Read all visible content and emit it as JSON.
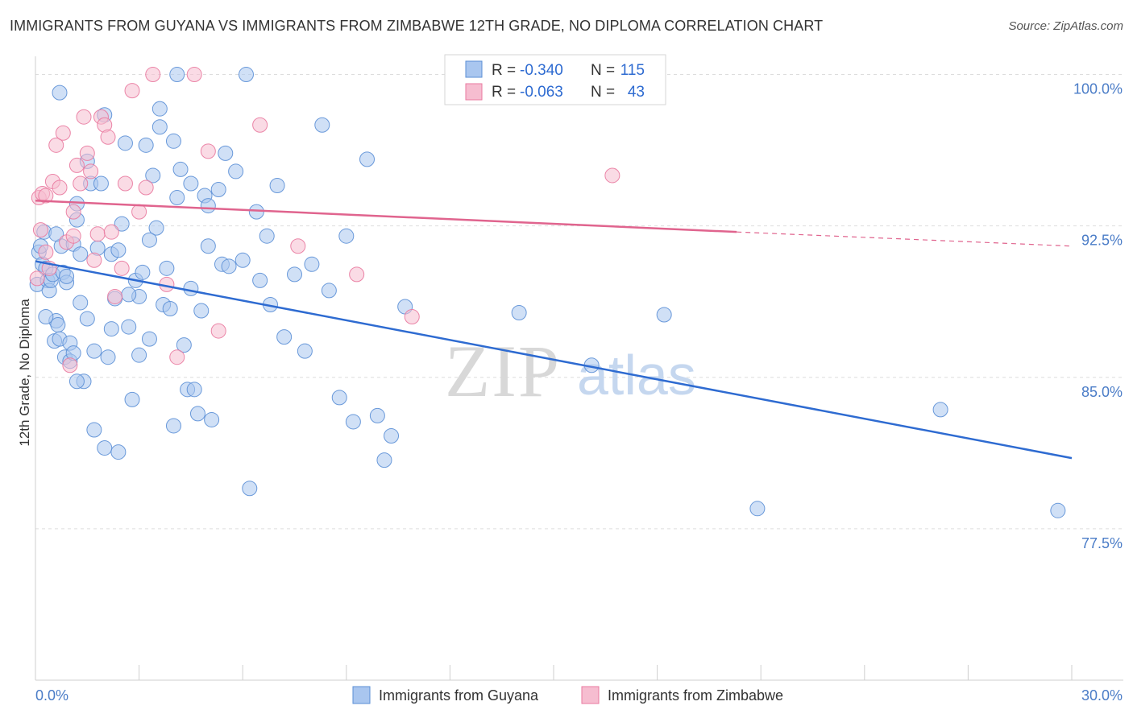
{
  "title": "IMMIGRANTS FROM GUYANA VS IMMIGRANTS FROM ZIMBABWE 12TH GRADE, NO DIPLOMA CORRELATION CHART",
  "source": "Source: ZipAtlas.com",
  "colors": {
    "guyana": "#5b8fd6",
    "guyana_fill": "#a9c6ef",
    "zimbabwe": "#e9799f",
    "zimbabwe_fill": "#f6bdd0",
    "tick_text": "#4a7cc7",
    "grid": "#dddddd"
  },
  "legend": {
    "rows": [
      {
        "r_label": "R =",
        "r_value": "-0.340",
        "n_label": "N =",
        "n_value": "115"
      },
      {
        "r_label": "R =",
        "r_value": "-0.063",
        "n_label": "N =",
        "n_value": "43"
      }
    ]
  },
  "watermark": {
    "zip": "ZIP",
    "atlas": "atlas"
  },
  "chart_data": {
    "type": "scatter",
    "title": "IMMIGRANTS FROM GUYANA VS IMMIGRANTS FROM ZIMBABWE 12TH GRADE, NO DIPLOMA CORRELATION CHART",
    "xlabel": "",
    "ylabel": "12th Grade, No Diploma",
    "xlim": [
      0,
      30
    ],
    "ylim": [
      70,
      100.5
    ],
    "x_tick_labels": [
      "0.0%",
      "30.0%"
    ],
    "y_ticks": [
      77.5,
      85.0,
      92.5,
      100.0
    ],
    "y_tick_labels": [
      "77.5%",
      "85.0%",
      "92.5%",
      "100.0%"
    ],
    "grid": true,
    "legend_placement": "top-center",
    "series": [
      {
        "name": "Immigrants from Guyana",
        "color": "#5b8fd6",
        "trend": {
          "x": [
            0,
            30
          ],
          "y": [
            90.75,
            81.0
          ]
        },
        "points": [
          [
            0.05,
            89.6
          ],
          [
            0.1,
            91.2
          ],
          [
            0.15,
            91.5
          ],
          [
            0.2,
            90.6
          ],
          [
            0.25,
            92.2
          ],
          [
            0.3,
            90.4
          ],
          [
            0.35,
            89.8
          ],
          [
            0.4,
            89.3
          ],
          [
            0.45,
            89.8
          ],
          [
            0.5,
            90.1
          ],
          [
            0.55,
            86.8
          ],
          [
            0.6,
            87.8
          ],
          [
            0.65,
            87.6
          ],
          [
            0.7,
            86.9
          ],
          [
            0.75,
            91.5
          ],
          [
            0.8,
            90.2
          ],
          [
            0.85,
            86.0
          ],
          [
            0.9,
            89.7
          ],
          [
            1.0,
            86.7
          ],
          [
            1.0,
            85.8
          ],
          [
            1.1,
            86.2
          ],
          [
            1.1,
            91.6
          ],
          [
            1.2,
            92.8
          ],
          [
            1.2,
            93.6
          ],
          [
            1.3,
            91.1
          ],
          [
            1.4,
            84.8
          ],
          [
            1.5,
            95.7
          ],
          [
            1.6,
            94.6
          ],
          [
            1.7,
            86.3
          ],
          [
            1.8,
            91.4
          ],
          [
            1.9,
            94.6
          ],
          [
            2.0,
            98.0
          ],
          [
            2.1,
            86.0
          ],
          [
            2.2,
            91.1
          ],
          [
            2.3,
            88.9
          ],
          [
            2.4,
            91.3
          ],
          [
            2.5,
            92.6
          ],
          [
            2.6,
            96.6
          ],
          [
            2.7,
            87.5
          ],
          [
            2.8,
            83.9
          ],
          [
            2.9,
            89.8
          ],
          [
            3.0,
            89.0
          ],
          [
            3.1,
            90.2
          ],
          [
            3.2,
            96.5
          ],
          [
            3.3,
            86.9
          ],
          [
            3.4,
            95.0
          ],
          [
            3.5,
            92.4
          ],
          [
            3.6,
            97.4
          ],
          [
            3.7,
            88.6
          ],
          [
            3.8,
            90.4
          ],
          [
            4.0,
            82.6
          ],
          [
            4.1,
            93.9
          ],
          [
            4.2,
            95.3
          ],
          [
            4.3,
            86.6
          ],
          [
            4.4,
            84.4
          ],
          [
            4.5,
            89.4
          ],
          [
            4.6,
            84.4
          ],
          [
            4.7,
            83.2
          ],
          [
            4.8,
            88.3
          ],
          [
            4.9,
            94.0
          ],
          [
            5.0,
            93.5
          ],
          [
            5.1,
            82.9
          ],
          [
            5.3,
            94.3
          ],
          [
            5.4,
            90.6
          ],
          [
            5.6,
            90.5
          ],
          [
            5.8,
            95.2
          ],
          [
            6.0,
            90.8
          ],
          [
            6.2,
            79.5
          ],
          [
            6.4,
            93.2
          ],
          [
            6.5,
            89.8
          ],
          [
            6.8,
            88.6
          ],
          [
            7.0,
            94.5
          ],
          [
            7.2,
            87.0
          ],
          [
            7.5,
            90.1
          ],
          [
            7.8,
            86.3
          ],
          [
            8.0,
            90.6
          ],
          [
            8.3,
            97.5
          ],
          [
            8.5,
            89.3
          ],
          [
            8.8,
            84.0
          ],
          [
            9.0,
            92.0
          ],
          [
            9.2,
            82.8
          ],
          [
            9.6,
            95.8
          ],
          [
            9.9,
            83.1
          ],
          [
            10.1,
            80.9
          ],
          [
            10.3,
            82.1
          ],
          [
            10.7,
            88.5
          ],
          [
            1.2,
            84.8
          ],
          [
            1.7,
            82.4
          ],
          [
            2.0,
            81.5
          ],
          [
            2.4,
            81.3
          ],
          [
            3.6,
            98.3
          ],
          [
            4.5,
            94.6
          ],
          [
            5.5,
            96.1
          ],
          [
            0.7,
            99.1
          ],
          [
            6.1,
            100.0
          ],
          [
            4.1,
            100.0
          ],
          [
            3.0,
            86.1
          ],
          [
            3.9,
            88.4
          ],
          [
            2.2,
            87.4
          ],
          [
            1.5,
            87.9
          ],
          [
            0.9,
            90.0
          ],
          [
            1.3,
            88.7
          ],
          [
            0.6,
            92.1
          ],
          [
            0.3,
            88.0
          ],
          [
            14.0,
            88.2
          ],
          [
            16.1,
            85.6
          ],
          [
            18.2,
            88.1
          ],
          [
            20.9,
            78.5
          ],
          [
            26.2,
            83.4
          ],
          [
            29.6,
            78.4
          ],
          [
            2.7,
            89.1
          ],
          [
            3.3,
            91.8
          ],
          [
            5.0,
            91.5
          ],
          [
            6.7,
            92.0
          ],
          [
            4.0,
            96.7
          ]
        ]
      },
      {
        "name": "Immigrants from Zimbabwe",
        "color": "#e9799f",
        "trend": {
          "x": [
            0,
            20.3
          ],
          "y": [
            93.75,
            92.2
          ],
          "dashed_to": {
            "x": 30,
            "y": 91.5
          }
        },
        "points": [
          [
            0.05,
            89.9
          ],
          [
            0.1,
            93.9
          ],
          [
            0.15,
            92.3
          ],
          [
            0.2,
            94.1
          ],
          [
            0.3,
            91.2
          ],
          [
            0.4,
            90.4
          ],
          [
            0.5,
            94.7
          ],
          [
            0.6,
            96.5
          ],
          [
            0.7,
            94.4
          ],
          [
            0.8,
            97.1
          ],
          [
            0.9,
            91.7
          ],
          [
            1.0,
            85.6
          ],
          [
            1.1,
            93.2
          ],
          [
            1.2,
            95.5
          ],
          [
            1.3,
            94.6
          ],
          [
            1.4,
            97.9
          ],
          [
            1.5,
            96.1
          ],
          [
            1.6,
            95.2
          ],
          [
            1.7,
            90.8
          ],
          [
            1.8,
            92.1
          ],
          [
            1.9,
            97.9
          ],
          [
            2.0,
            97.5
          ],
          [
            2.1,
            96.9
          ],
          [
            2.2,
            92.2
          ],
          [
            2.3,
            89.0
          ],
          [
            2.5,
            90.4
          ],
          [
            2.6,
            94.6
          ],
          [
            2.8,
            99.2
          ],
          [
            3.0,
            93.2
          ],
          [
            3.2,
            94.4
          ],
          [
            3.4,
            100.0
          ],
          [
            3.8,
            89.6
          ],
          [
            4.1,
            86.0
          ],
          [
            4.6,
            100.0
          ],
          [
            5.0,
            96.2
          ],
          [
            5.3,
            87.3
          ],
          [
            6.5,
            97.5
          ],
          [
            7.6,
            91.5
          ],
          [
            9.3,
            90.1
          ],
          [
            10.9,
            88.0
          ],
          [
            16.7,
            95.0
          ],
          [
            0.3,
            94.0
          ],
          [
            1.1,
            92.0
          ]
        ]
      }
    ]
  }
}
